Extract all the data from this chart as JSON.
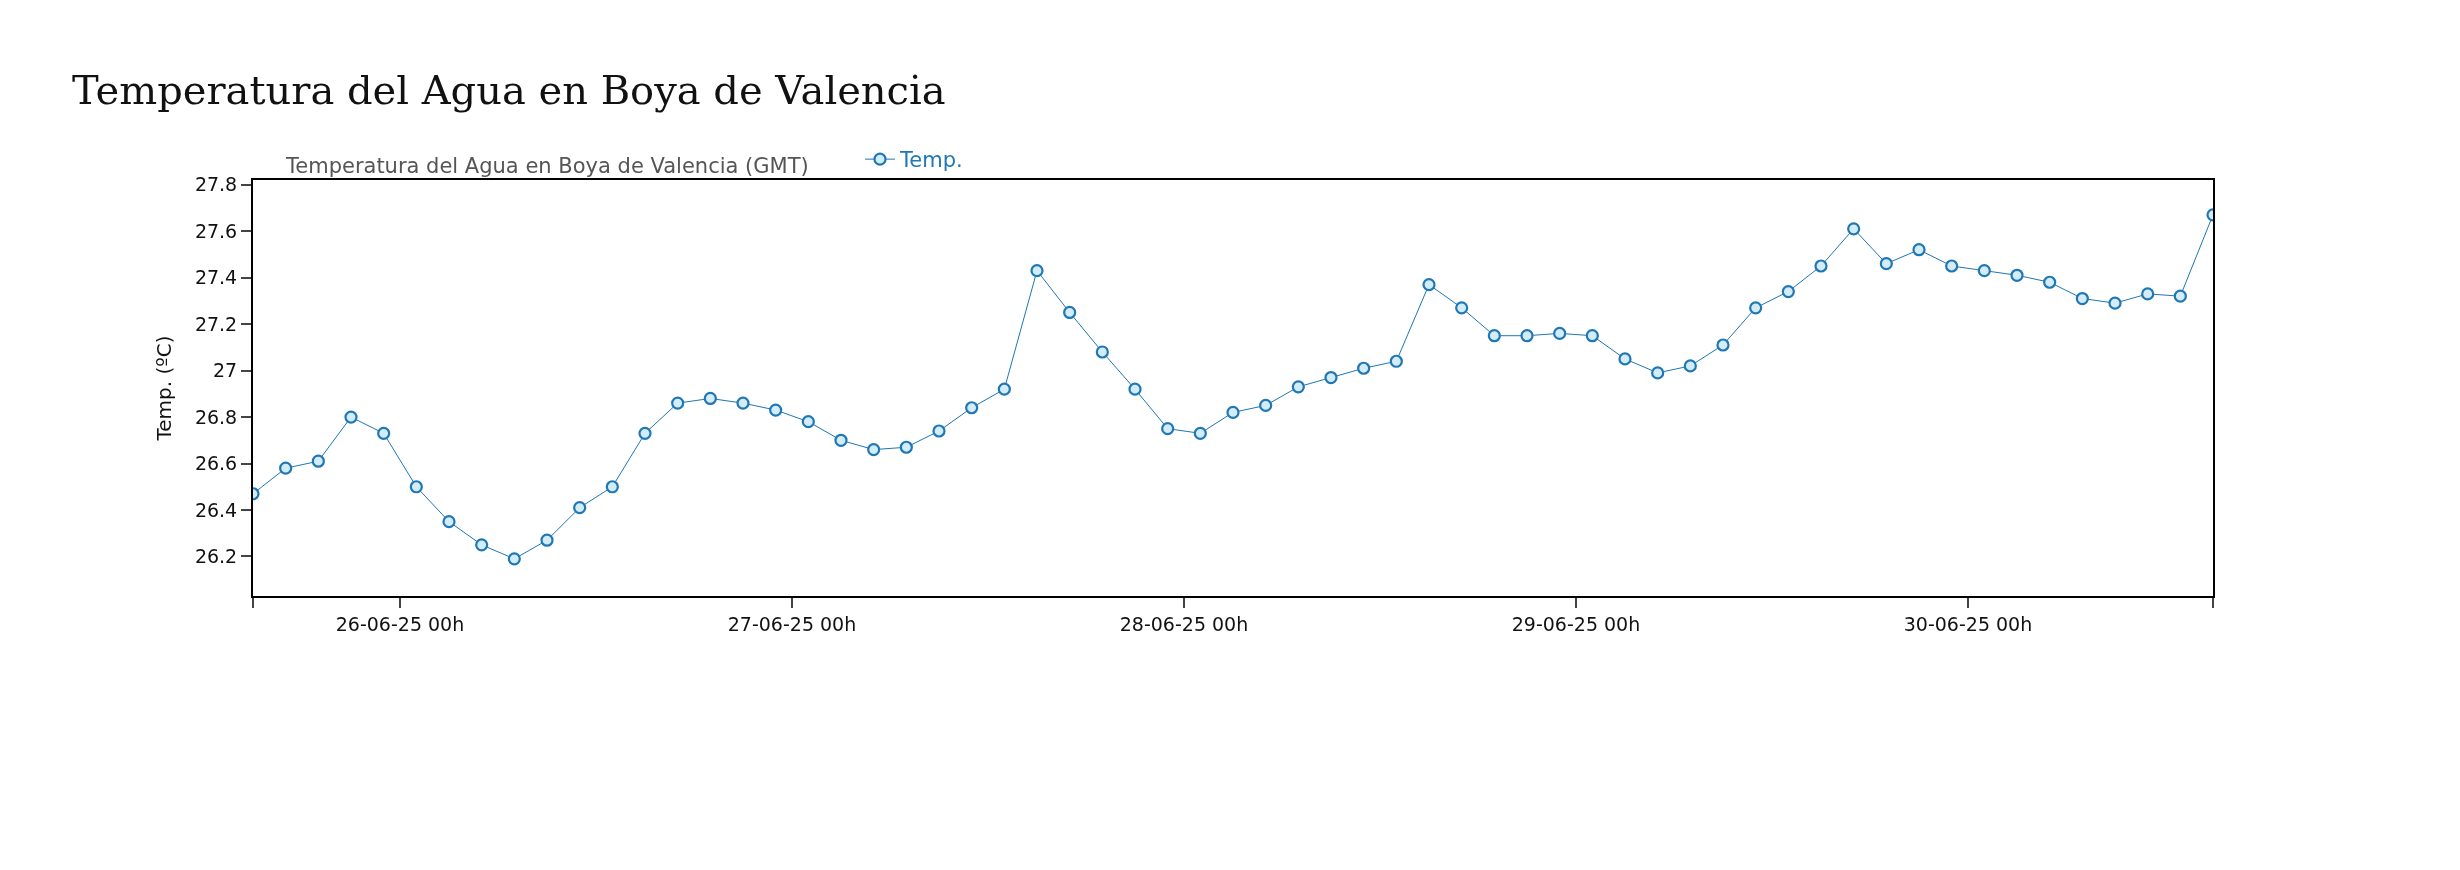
{
  "chart_data": {
    "type": "line",
    "title": "Temperatura del Agua en Boya de Valencia",
    "subtitle": "Temperatura del Agua en Boya de Valencia (GMT)",
    "ylabel": "Temp. (ºC)",
    "x": [
      "--06-25T15:00",
      "--06-25T17:00",
      "--06-25T19:00",
      "--06-25T21:00",
      "--06-25T23:00",
      "--06-26T01:00",
      "--06-26T03:00",
      "--06-26T05:00",
      "--06-26T07:00",
      "--06-26T09:00",
      "--06-26T11:00",
      "--06-26T13:00",
      "--06-26T15:00",
      "--06-26T17:00",
      "--06-26T19:00",
      "--06-26T21:00",
      "--06-26T23:00",
      "--06-27T01:00",
      "--06-27T03:00",
      "--06-27T05:00",
      "--06-27T07:00",
      "--06-27T09:00",
      "--06-27T11:00",
      "--06-27T13:00",
      "--06-27T15:00",
      "--06-27T17:00",
      "--06-27T19:00",
      "--06-27T21:00",
      "--06-27T23:00",
      "--06-28T01:00",
      "--06-28T03:00",
      "--06-28T05:00",
      "--06-28T07:00",
      "--06-28T09:00",
      "--06-28T11:00",
      "--06-28T13:00",
      "--06-28T15:00",
      "--06-28T17:00",
      "--06-28T19:00",
      "--06-28T21:00",
      "--06-28T23:00",
      "--06-29T01:00",
      "--06-29T03:00",
      "--06-29T05:00",
      "--06-29T07:00",
      "--06-29T09:00",
      "--06-29T11:00",
      "--06-29T13:00",
      "--06-29T15:00",
      "--06-29T17:00",
      "--06-29T19:00",
      "--06-29T21:00",
      "--06-29T23:00",
      "--06-30T01:00",
      "--06-30T03:00",
      "--06-30T05:00",
      "--06-30T07:00",
      "--06-30T09:00",
      "--06-30T11:00",
      "--06-30T13:00",
      "--06-30T15:00"
    ],
    "series": [
      {
        "name": "Temp.",
        "color": "#1f77b4",
        "values": [
          26.47,
          26.58,
          26.61,
          26.8,
          26.73,
          26.5,
          26.35,
          26.25,
          26.19,
          26.27,
          26.41,
          26.5,
          26.73,
          26.86,
          26.88,
          26.86,
          26.83,
          26.78,
          26.7,
          26.66,
          26.67,
          26.74,
          26.84,
          26.92,
          27.43,
          27.25,
          27.08,
          26.92,
          26.75,
          26.73,
          26.82,
          26.85,
          26.93,
          26.97,
          27.01,
          27.04,
          27.37,
          27.27,
          27.15,
          27.15,
          27.16,
          27.15,
          27.05,
          26.99,
          27.02,
          27.11,
          27.27,
          27.34,
          27.45,
          27.61,
          27.46,
          27.52,
          27.45,
          27.43,
          27.41,
          27.38,
          27.31,
          27.29,
          27.33,
          27.32,
          27.67
        ]
      }
    ],
    "xlim": [
      "--06-25T15:00",
      "--06-30T15:00"
    ],
    "xticks": [
      {
        "value": "--06-25T15:00",
        "label": null
      },
      {
        "value": "--06-26T00:00",
        "label": "26-06-25 00h"
      },
      {
        "value": "--06-27T00:00",
        "label": "27-06-25 00h"
      },
      {
        "value": "--06-28T00:00",
        "label": "28-06-25 00h"
      },
      {
        "value": "--06-29T00:00",
        "label": "29-06-25 00h"
      },
      {
        "value": "--06-30T00:00",
        "label": "30-06-25 00h"
      },
      {
        "value": "--06-30T15:00",
        "label": null
      }
    ],
    "ylim": [
      26.03,
      27.82
    ],
    "yticks": [
      26.2,
      26.4,
      26.6,
      26.8,
      27,
      27.2,
      27.4,
      27.6,
      27.8
    ],
    "marker": "circle",
    "line_style": "solid",
    "legend": "top"
  }
}
